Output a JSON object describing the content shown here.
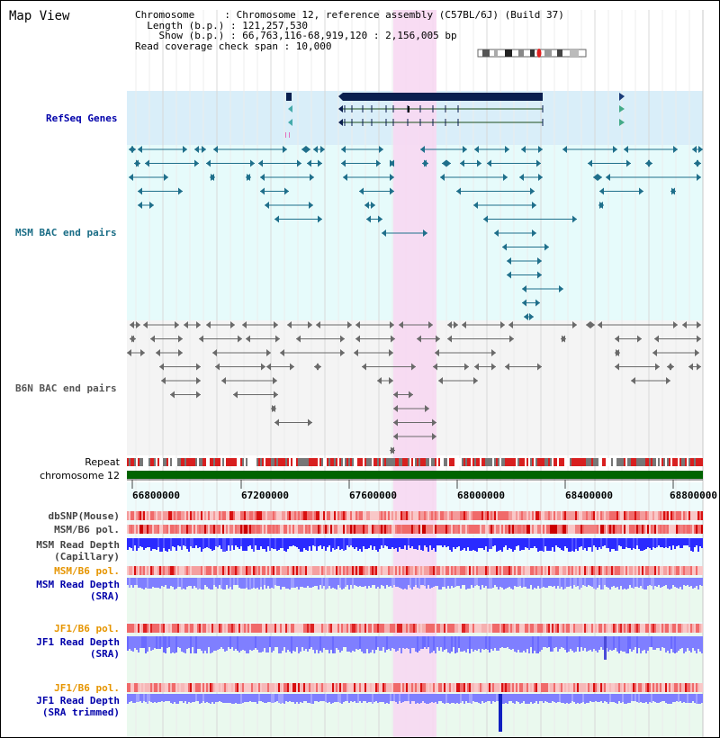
{
  "view": {
    "title": "Map View",
    "chromosome_line": "Chromosome     : Chromosome 12, reference assembly (C57BL/6J) (Build 37)",
    "length_line": "  Length (b.p.) : 121,257,530",
    "show_line": "    Show (b.p.) : 66,763,116-68,919,120 : 2,156,005 bp",
    "coverage_line": "Read coverage check span : 10,000"
  },
  "tracks": {
    "refseq": "RefSeq Genes",
    "msm_bac": "MSM BAC end pairs",
    "b6n_bac": "B6N BAC end pairs",
    "repeat": "Repeat",
    "chromosome": "chromosome 12",
    "dbsnp": "dbSNP(Mouse)",
    "msm_b6_pol_1": "MSM/B6 pol.",
    "msm_read_depth_cap": "MSM Read Depth",
    "msm_read_depth_cap_sub": "(Capillary)",
    "msm_b6_pol_2": "MSM/B6 pol.",
    "msm_read_depth_sra": "MSM Read Depth",
    "msm_read_depth_sra_sub": "(SRA)",
    "jf1_b6_pol_1": "JF1/B6 pol.",
    "jf1_read_depth_sra": "JF1 Read Depth",
    "jf1_read_depth_sra_sub": "(SRA)",
    "jf1_b6_pol_2": "JF1/B6 pol.",
    "jf1_read_depth_trim": "JF1 Read Depth",
    "jf1_read_depth_trim_sub": "(SRA trimmed)"
  },
  "axis": {
    "ticks": [
      "66800000",
      "67200000",
      "67600000",
      "68000000",
      "68400000",
      "68800000"
    ]
  },
  "colors": {
    "refseq_bg": "#d9eef9",
    "msm_bg": "#e6fbfb",
    "b6n_bg": "#f4f4f4",
    "highlight": "#f7d8f2",
    "msm_feature": "#1f6f8b",
    "b6n_feature": "#6a6a6a",
    "gene_dark": "#0a1f4f",
    "repeat_red": "#d81f1f",
    "chromosome_green": "#006400",
    "depth_blue": "#2a2aff",
    "sra_blue": "#7f7fff",
    "label_blue": "#0000aa",
    "label_teal": "#1a6d86",
    "label_orange": "#e69500"
  }
}
